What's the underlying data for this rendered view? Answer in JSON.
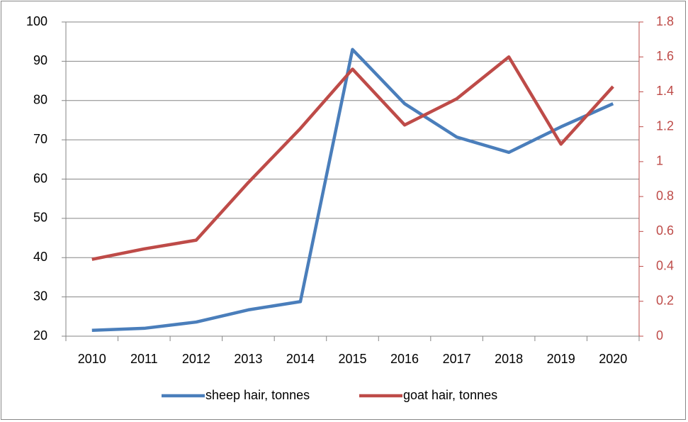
{
  "chart_data": {
    "type": "line",
    "categories": [
      "2010",
      "2011",
      "2012",
      "2013",
      "2014",
      "2015",
      "2016",
      "2017",
      "2018",
      "2019",
      "2020"
    ],
    "series": [
      {
        "name": "sheep hair, tonnes",
        "color": "#4a7ebb",
        "values": [
          21.5,
          22,
          23.6,
          26.7,
          28.8,
          93,
          79.2,
          70.7,
          66.8,
          73.3,
          79.2
        ]
      },
      {
        "name": "goat hair, tonnes",
        "color": "#be4b48",
        "axis": "y2",
        "values": [
          0.44,
          0.5,
          0.55,
          0.88,
          1.19,
          1.53,
          1.21,
          1.36,
          1.6,
          1.1,
          1.43
        ]
      }
    ],
    "ylim": [
      20,
      100
    ],
    "yticks": [
      20,
      30,
      40,
      50,
      60,
      70,
      80,
      90,
      100
    ],
    "y2lim": [
      0,
      1.8
    ],
    "y2ticks": [
      0,
      0.2,
      0.4,
      0.6,
      0.8,
      1,
      1.2,
      1.4,
      1.6,
      1.8
    ],
    "y2color": "#be4b48",
    "grid": true,
    "legend": "bottom"
  }
}
